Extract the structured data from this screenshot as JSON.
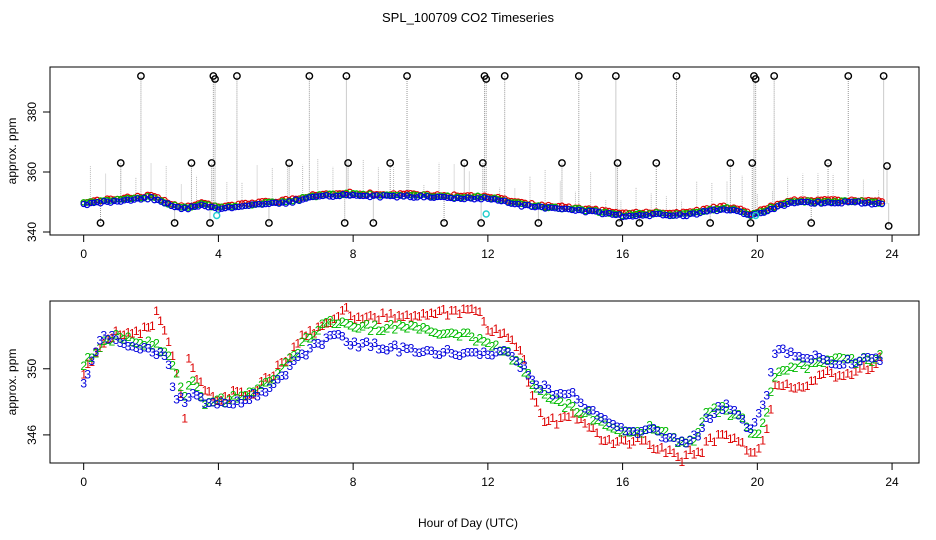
{
  "chart_data": {
    "title": "SPL_100709  CO2 Timeseries",
    "xlabel": "Hour of Day (UTC)",
    "x_ticks": [
      0,
      4,
      8,
      12,
      16,
      20,
      24
    ],
    "x_tick_labels": [
      "0",
      "4",
      "8",
      "12",
      "16",
      "20",
      "24"
    ],
    "xlim": [
      -1,
      24.8
    ],
    "colors": {
      "c1": "#dd0000",
      "c2": "#00bb00",
      "c3": "#0000dd",
      "raw": "#000000",
      "cyan": "#22cccc",
      "spike": "#999999"
    },
    "panels": [
      {
        "type": "scatter",
        "ylabel": "approx. ppm",
        "ylim": [
          339,
          395
        ],
        "y_ticks": [
          340,
          360,
          380
        ],
        "y_tick_labels": [
          "340",
          "360",
          "380"
        ],
        "baseline": {
          "x": [
            0,
            1,
            2,
            2.7,
            3,
            3.5,
            4,
            5,
            6,
            7,
            7.8,
            9,
            10,
            11,
            11.8,
            12.2,
            13,
            14,
            15,
            15.7,
            16,
            17,
            17.5,
            18,
            18.5,
            19,
            19.5,
            19.8,
            20.2,
            21,
            22,
            23,
            23.7
          ],
          "y": [
            349.5,
            350.5,
            351.5,
            348.5,
            348,
            349,
            348,
            349,
            350,
            352,
            352.5,
            352,
            352,
            351.5,
            351.5,
            351,
            349,
            348,
            347,
            346,
            345.5,
            346,
            345.5,
            346,
            347,
            348,
            347,
            345.5,
            347,
            350,
            350,
            350,
            349.5
          ]
        },
        "raw_spikes": [
          {
            "x": 0.5,
            "y": 343
          },
          {
            "x": 1.1,
            "y": 363
          },
          {
            "x": 1.7,
            "y": 392
          },
          {
            "x": 2.7,
            "y": 343
          },
          {
            "x": 3.2,
            "y": 363
          },
          {
            "x": 3.75,
            "y": 343
          },
          {
            "x": 3.8,
            "y": 363
          },
          {
            "x": 3.85,
            "y": 392
          },
          {
            "x": 3.9,
            "y": 391
          },
          {
            "x": 4.55,
            "y": 392
          },
          {
            "x": 5.5,
            "y": 343
          },
          {
            "x": 6.1,
            "y": 363
          },
          {
            "x": 6.7,
            "y": 392
          },
          {
            "x": 7.75,
            "y": 343
          },
          {
            "x": 7.8,
            "y": 392
          },
          {
            "x": 7.85,
            "y": 363
          },
          {
            "x": 8.6,
            "y": 343
          },
          {
            "x": 9.1,
            "y": 363
          },
          {
            "x": 9.6,
            "y": 392
          },
          {
            "x": 10.7,
            "y": 343
          },
          {
            "x": 11.3,
            "y": 363
          },
          {
            "x": 11.8,
            "y": 343
          },
          {
            "x": 11.85,
            "y": 363
          },
          {
            "x": 11.9,
            "y": 392
          },
          {
            "x": 11.95,
            "y": 391
          },
          {
            "x": 12.5,
            "y": 392
          },
          {
            "x": 13.5,
            "y": 343
          },
          {
            "x": 14.2,
            "y": 363
          },
          {
            "x": 14.7,
            "y": 392
          },
          {
            "x": 15.8,
            "y": 392
          },
          {
            "x": 15.85,
            "y": 363
          },
          {
            "x": 15.9,
            "y": 343
          },
          {
            "x": 16.5,
            "y": 343
          },
          {
            "x": 17.0,
            "y": 363
          },
          {
            "x": 17.6,
            "y": 392
          },
          {
            "x": 18.6,
            "y": 343
          },
          {
            "x": 19.2,
            "y": 363
          },
          {
            "x": 19.8,
            "y": 343
          },
          {
            "x": 19.85,
            "y": 363
          },
          {
            "x": 19.9,
            "y": 392
          },
          {
            "x": 19.95,
            "y": 391
          },
          {
            "x": 20.5,
            "y": 392
          },
          {
            "x": 21.6,
            "y": 343
          },
          {
            "x": 22.1,
            "y": 363
          },
          {
            "x": 22.7,
            "y": 392
          },
          {
            "x": 23.75,
            "y": 392
          },
          {
            "x": 23.85,
            "y": 362
          },
          {
            "x": 23.9,
            "y": 342
          }
        ],
        "cyan_points": [
          {
            "x": 3.95,
            "y": 345.5
          },
          {
            "x": 11.95,
            "y": 346
          },
          {
            "x": 19.95,
            "y": 345.5
          }
        ]
      },
      {
        "type": "scatter",
        "ylabel": "approx. ppm",
        "ylim": [
          344.3,
          354.1
        ],
        "y_ticks": [
          346,
          350
        ],
        "y_tick_labels": [
          "346",
          "350"
        ],
        "series": [
          {
            "name": "1",
            "marker": "1",
            "color": "#dd0000",
            "offset": 0.45,
            "x": [
              0,
              0.5,
              1,
              1.5,
              2,
              2.2,
              2.6,
              2.8,
              3,
              3.1,
              3.3,
              3.6,
              4,
              4.5,
              5,
              5.5,
              6,
              6.5,
              7,
              7.5,
              7.8,
              8,
              9,
              10,
              11,
              11.5,
              11.8,
              12,
              12.5,
              13,
              13.3,
              13.6,
              14,
              14.5,
              15,
              15.5,
              16,
              16.5,
              17,
              17.5,
              17.8,
              18,
              18.3,
              18.5,
              19,
              19.5,
              19.8,
              20,
              20.3,
              20.5,
              21,
              21.5,
              22,
              22.5,
              23,
              23.5,
              23.7
            ],
            "y": [
              349.8,
              351.2,
              352.2,
              352,
              352.6,
              353.5,
              351.2,
              349.5,
              347,
              350.5,
              349.8,
              348.5,
              348.2,
              348.5,
              348.5,
              349.5,
              350.5,
              352,
              352.5,
              353,
              353.6,
              353,
              353.2,
              353.3,
              353.4,
              353.5,
              353.4,
              352.5,
              352,
              351,
              348.5,
              347,
              346.8,
              347.3,
              346.5,
              345.5,
              345.5,
              345.8,
              345.2,
              344.8,
              344.5,
              345,
              344.8,
              345.6,
              346,
              345.5,
              345,
              344.8,
              346.5,
              348.8,
              349,
              349,
              349.8,
              349.5,
              350,
              350.2,
              350.8
            ]
          },
          {
            "name": "2",
            "marker": "2",
            "color": "#00bb00",
            "offset": 0.2,
            "x": [
              0,
              0.5,
              1,
              1.5,
              2,
              2.5,
              2.8,
              3,
              3.3,
              3.6,
              4,
              4.5,
              5,
              5.5,
              6,
              6.5,
              7,
              7.5,
              8,
              9,
              10,
              11,
              11.5,
              12,
              12.5,
              13,
              13.5,
              14,
              14.5,
              15,
              15.5,
              16,
              16.5,
              17,
              17.5,
              17.8,
              18,
              18.3,
              18.5,
              19,
              19.5,
              19.8,
              20,
              20.3,
              20.5,
              21,
              21.5,
              22,
              22.5,
              23,
              23.5,
              23.7
            ],
            "y": [
              350.2,
              351.5,
              352,
              351.8,
              351.5,
              351,
              349.5,
              348.5,
              349.2,
              348,
              348,
              348.3,
              348.5,
              349.3,
              350.2,
              351.5,
              352.5,
              353,
              352.5,
              352.5,
              352.5,
              352,
              352,
              351.5,
              351,
              350.2,
              348.5,
              348,
              347.7,
              347.2,
              346.5,
              346,
              346.2,
              346.5,
              345.8,
              345.4,
              345.5,
              346.2,
              347.5,
              347.5,
              347,
              346,
              346,
              347.5,
              349.5,
              350.2,
              350.2,
              350.3,
              350.5,
              350.5,
              350.5,
              350.7
            ]
          },
          {
            "name": "3",
            "marker": "3",
            "color": "#0000dd",
            "offset": -0.1,
            "x": [
              0,
              0.5,
              1,
              1.5,
              2,
              2.5,
              2.7,
              3,
              3.3,
              3.6,
              4,
              4.5,
              5,
              5.5,
              6,
              6.5,
              7,
              7.5,
              8,
              9,
              10,
              11,
              11.5,
              12,
              12.5,
              13,
              13.5,
              14,
              14.5,
              15,
              15.5,
              16,
              16.5,
              17,
              17.5,
              17.8,
              18,
              18.3,
              18.5,
              19,
              19.5,
              19.8,
              20,
              20.3,
              20.5,
              21,
              21.5,
              22,
              22.5,
              23,
              23.5,
              23.7
            ],
            "y": [
              349,
              352,
              351.8,
              351.3,
              351.2,
              350.5,
              348.2,
              348,
              348.5,
              347.8,
              348,
              348,
              348.3,
              348.8,
              349.8,
              350.8,
              351.5,
              352,
              351.5,
              351.3,
              351,
              351,
              350.8,
              351,
              351,
              350.2,
              349,
              348.5,
              348.5,
              347.5,
              346.8,
              346.2,
              346.3,
              346.2,
              345.7,
              345.5,
              345.8,
              346,
              347,
              347.8,
              347,
              346.3,
              347,
              348.5,
              351,
              351,
              350.7,
              350.5,
              350.3,
              350.5,
              350.5,
              350.7
            ]
          }
        ]
      }
    ]
  }
}
